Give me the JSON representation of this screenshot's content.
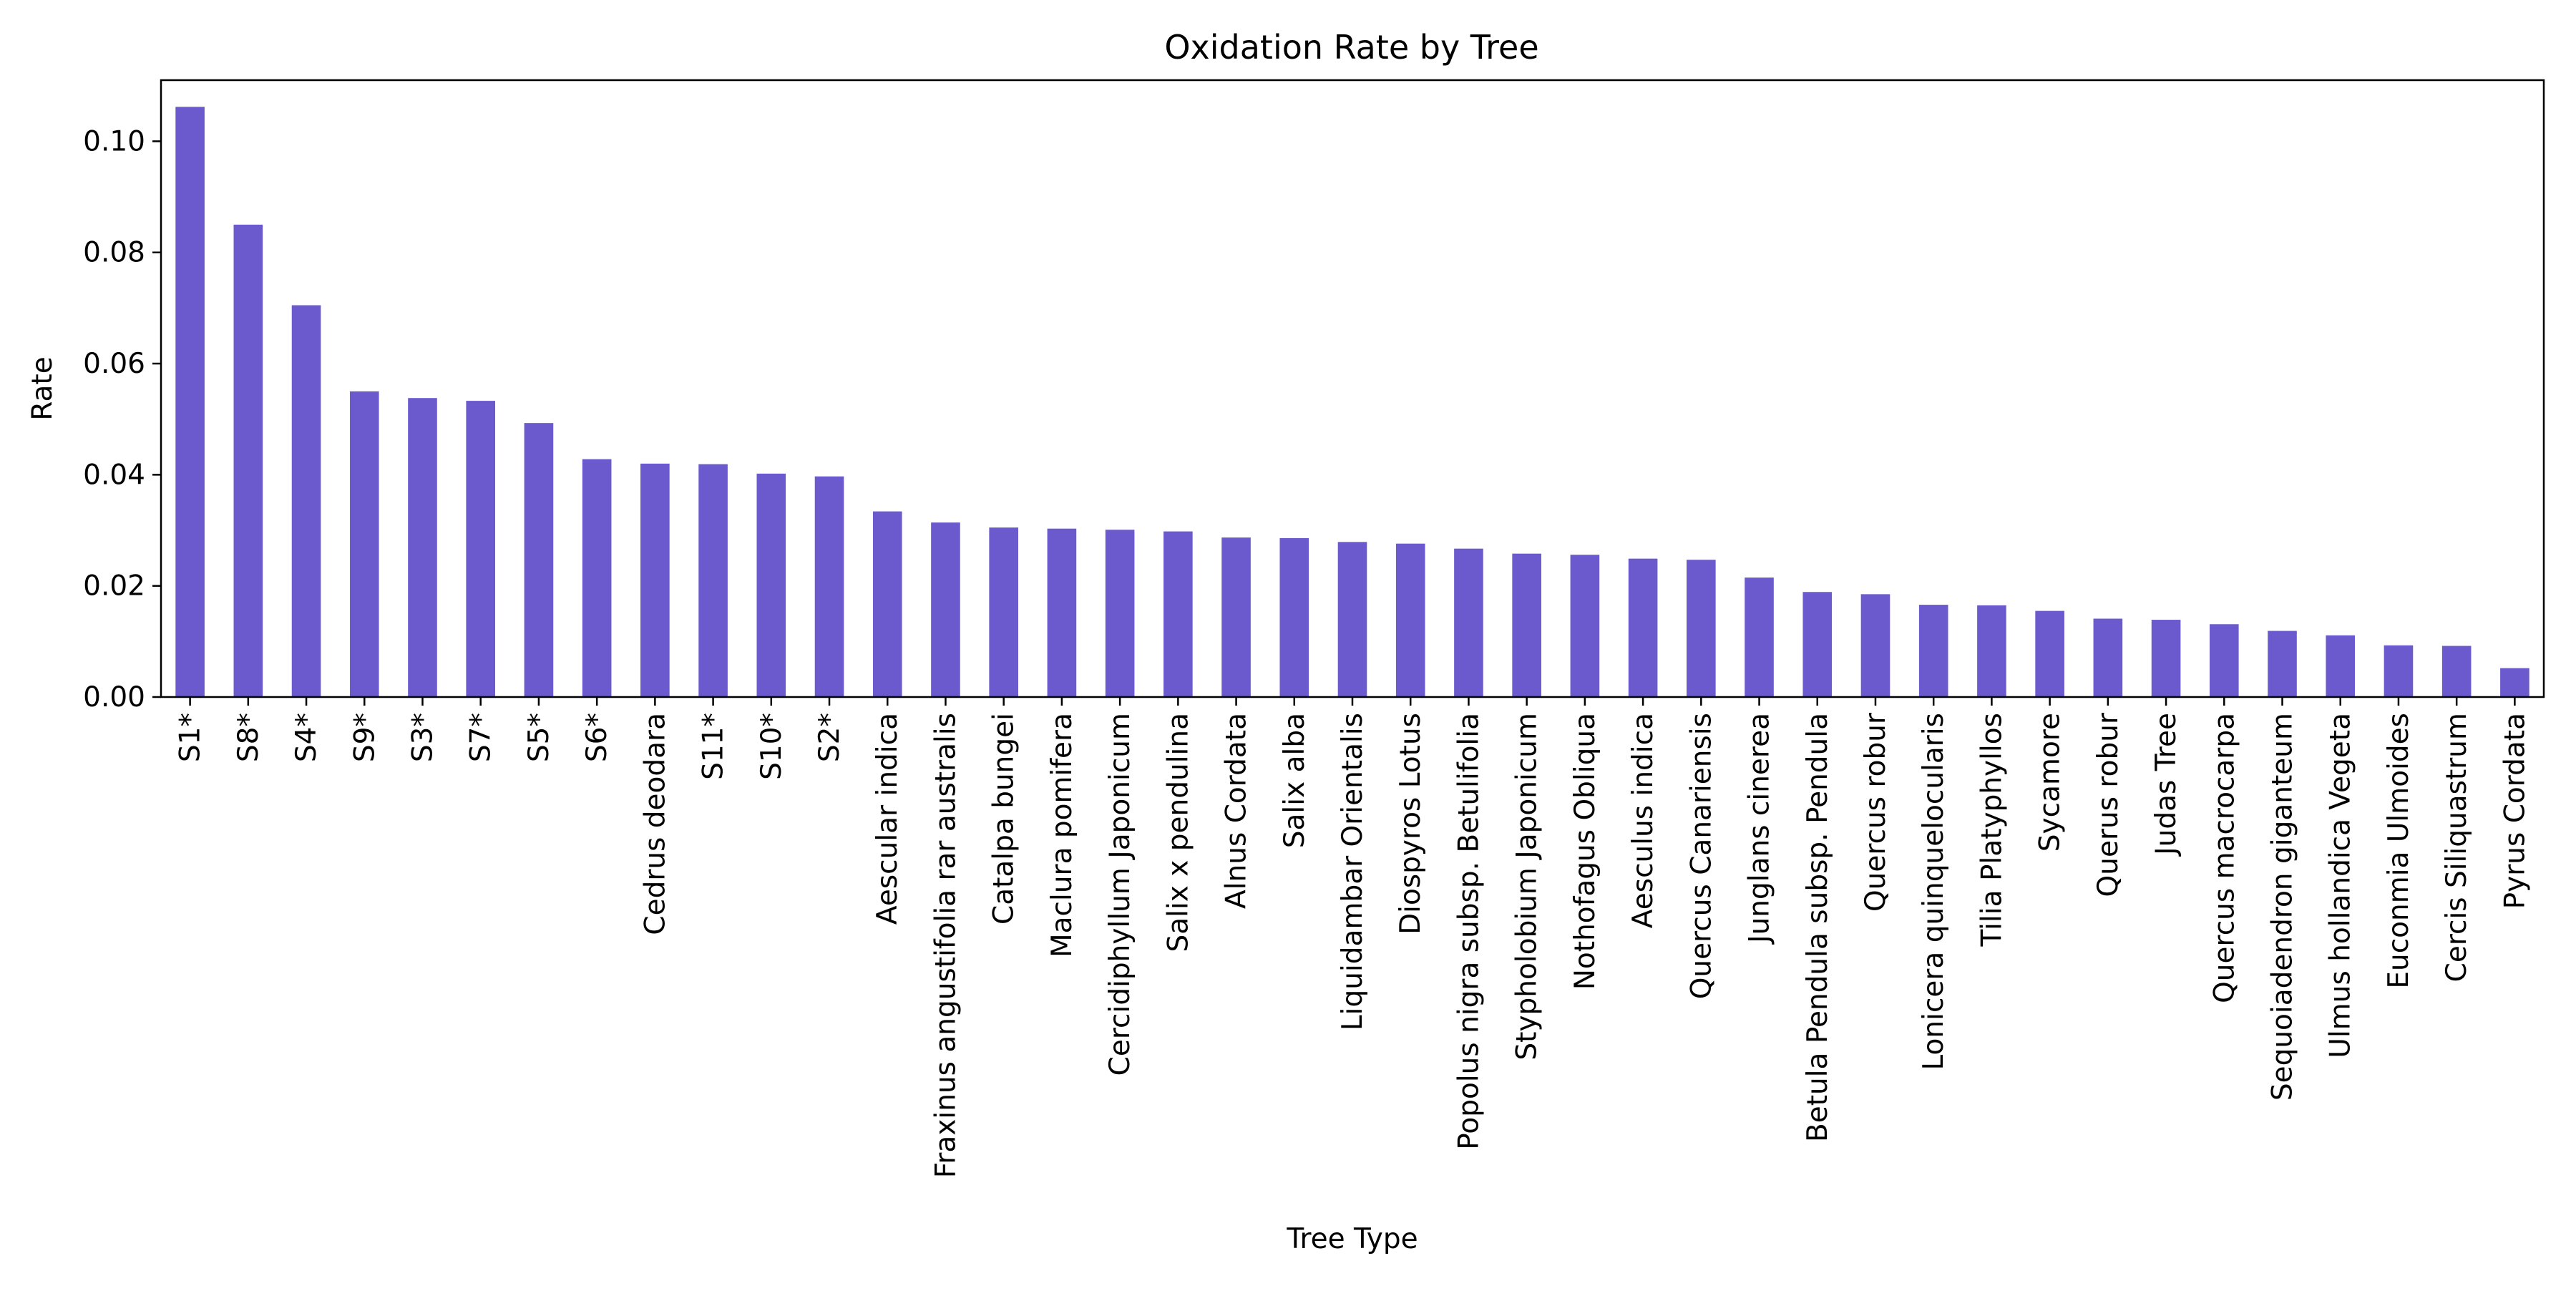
{
  "chart_data": {
    "type": "bar",
    "title": "Oxidation Rate by Tree",
    "xlabel": "Tree Type",
    "ylabel": "Rate",
    "bar_color": "#6a5acd",
    "ylim": [
      0,
      0.111
    ],
    "yticks": [
      0.0,
      0.02,
      0.04,
      0.06,
      0.08,
      0.1
    ],
    "ytick_labels": [
      "0.00",
      "0.02",
      "0.04",
      "0.06",
      "0.08",
      "0.10"
    ],
    "grid": false,
    "legend": "none",
    "categories": [
      "S1*",
      "S8*",
      "S4*",
      "S9*",
      "S3*",
      "S7*",
      "S5*",
      "S6*",
      "Cedrus deodara",
      "S11*",
      "S10*",
      "S2*",
      "Aescular indica",
      "Fraxinus angustifolia rar australis",
      "Catalpa bungei",
      "Maclura pomifera",
      "Cercidiphyllum Japonicum",
      "Salix x pendulina",
      "Alnus Cordata",
      "Salix alba",
      "Liquidambar Orientalis",
      "Diospyros Lotus",
      "Popolus nigra subsp. Betulifolia",
      "Stypholobium Japonicum",
      "Nothofagus Obliqua",
      "Aesculus indica",
      "Quercus Canariensis",
      "Junglans cinerea",
      "Betula Pendula subsp. Pendula",
      "Quercus robur",
      "Lonicera quinquelocularis",
      "Tilia Platyphyllos",
      "Sycamore",
      "Querus robur",
      "Judas Tree",
      "Quercus macrocarpa",
      "Sequoiadendron giganteum",
      "Ulmus hollandica Vegeta",
      "Euconmia Ulmoides",
      "Cercis Siliquastrum",
      "Pyrus Cordata"
    ],
    "values": [
      0.1062,
      0.085,
      0.0705,
      0.055,
      0.0538,
      0.0533,
      0.0493,
      0.0428,
      0.042,
      0.0419,
      0.0402,
      0.0397,
      0.0334,
      0.0314,
      0.0305,
      0.0303,
      0.0301,
      0.0298,
      0.0287,
      0.0286,
      0.0279,
      0.0276,
      0.0267,
      0.0258,
      0.0256,
      0.0249,
      0.0247,
      0.0215,
      0.0189,
      0.0185,
      0.0166,
      0.0165,
      0.0155,
      0.0141,
      0.0139,
      0.0131,
      0.0119,
      0.0111,
      0.0093,
      0.0092,
      0.0052
    ]
  }
}
